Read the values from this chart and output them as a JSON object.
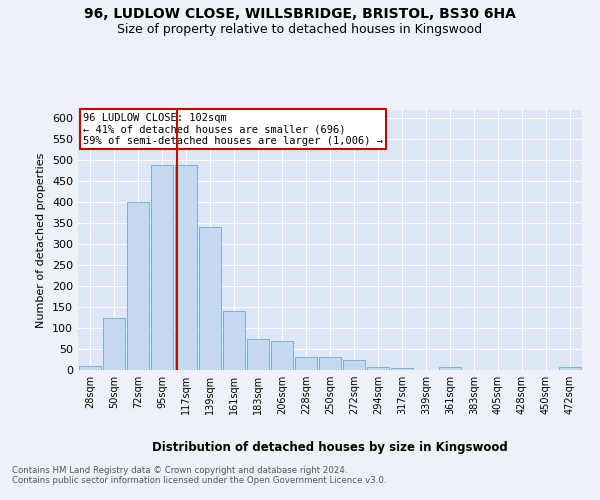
{
  "title1": "96, LUDLOW CLOSE, WILLSBRIDGE, BRISTOL, BS30 6HA",
  "title2": "Size of property relative to detached houses in Kingswood",
  "xlabel": "Distribution of detached houses by size in Kingswood",
  "ylabel": "Number of detached properties",
  "bar_labels": [
    "28sqm",
    "50sqm",
    "72sqm",
    "95sqm",
    "117sqm",
    "139sqm",
    "161sqm",
    "183sqm",
    "206sqm",
    "228sqm",
    "250sqm",
    "272sqm",
    "294sqm",
    "317sqm",
    "339sqm",
    "361sqm",
    "383sqm",
    "405sqm",
    "428sqm",
    "450sqm",
    "472sqm"
  ],
  "bar_values": [
    10,
    125,
    400,
    490,
    490,
    340,
    140,
    75,
    70,
    30,
    30,
    25,
    8,
    5,
    0,
    8,
    0,
    0,
    0,
    0,
    8
  ],
  "bar_color": "#c5d8f0",
  "bar_edgecolor": "#6aaad4",
  "vline_x": 3.62,
  "vline_color": "#cc0000",
  "annotation_text": "96 LUDLOW CLOSE: 102sqm\n← 41% of detached houses are smaller (696)\n59% of semi-detached houses are larger (1,006) →",
  "annotation_box_edgecolor": "#cc0000",
  "ylim": [
    0,
    620
  ],
  "yticks": [
    0,
    50,
    100,
    150,
    200,
    250,
    300,
    350,
    400,
    450,
    500,
    550,
    600
  ],
  "footnote": "Contains HM Land Registry data © Crown copyright and database right 2024.\nContains public sector information licensed under the Open Government Licence v3.0.",
  "bg_color": "#edf2f9",
  "plot_bg_color": "#dde6f5",
  "grid_color": "#ffffff"
}
